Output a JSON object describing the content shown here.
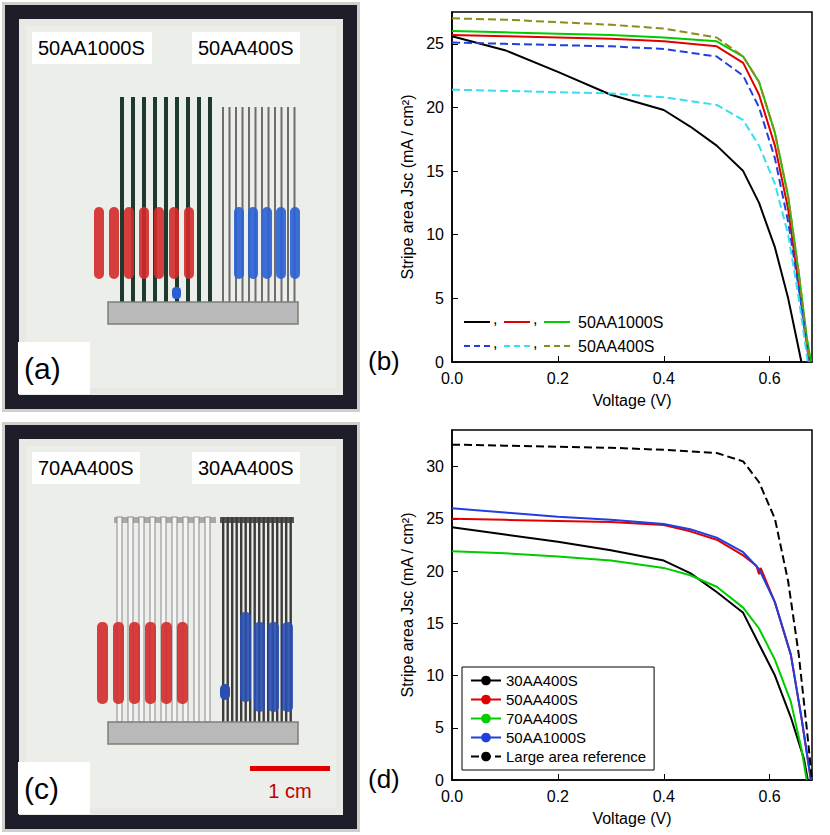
{
  "photos": [
    {
      "label": "(a)",
      "samples": [
        "50AA1000S",
        "50AA400S"
      ]
    },
    {
      "label": "(c)",
      "samples": [
        "70AA400S",
        "30AA400S"
      ],
      "scale_bar": "1 cm"
    }
  ],
  "chart_data": [
    {
      "type": "line",
      "label": "(b)",
      "x_label": "Voltage (V)",
      "y_label": "Stripe area Jsc (mA / cm²)",
      "xlim": [
        0,
        0.68
      ],
      "xticks": [
        {
          "value": 0,
          "label": "0.0"
        },
        0.2,
        0.4,
        0.6
      ],
      "ylim": [
        0,
        27.5
      ],
      "yticks": [
        0,
        5,
        10,
        15,
        20,
        25
      ],
      "grid": false,
      "legend": "bottom-left",
      "legend_separator": ",",
      "series": [
        {
          "name": "50AA1000S",
          "color": "#000000",
          "line_style": "solid",
          "x": [
            0,
            0.1,
            0.2,
            0.3,
            0.4,
            0.45,
            0.5,
            0.55,
            0.58,
            0.61,
            0.635,
            0.65,
            0.66
          ],
          "values": [
            25.6,
            24.5,
            22.8,
            21.0,
            19.8,
            18.5,
            17.0,
            15.0,
            12.5,
            9.0,
            5.0,
            2.0,
            0
          ]
        },
        {
          "name": "50AA1000S",
          "color": "#e00000",
          "line_style": "solid",
          "x": [
            0,
            0.1,
            0.2,
            0.3,
            0.4,
            0.5,
            0.55,
            0.58,
            0.61,
            0.635,
            0.655,
            0.668,
            0.675
          ],
          "values": [
            25.7,
            25.6,
            25.5,
            25.4,
            25.2,
            24.8,
            23.5,
            21.0,
            17.0,
            12.0,
            6.0,
            2.0,
            0
          ]
        },
        {
          "name": "50AA1000S",
          "color": "#00cc00",
          "line_style": "solid",
          "x": [
            0,
            0.1,
            0.2,
            0.3,
            0.4,
            0.5,
            0.55,
            0.58,
            0.61,
            0.635,
            0.655,
            0.67,
            0.678
          ],
          "values": [
            26.0,
            25.9,
            25.8,
            25.7,
            25.5,
            25.2,
            24.0,
            22.0,
            18.0,
            13.0,
            7.0,
            2.0,
            0
          ]
        },
        {
          "name": "50AA400S",
          "color": "#1f3fe0",
          "line_style": "dashed",
          "x": [
            0,
            0.1,
            0.2,
            0.3,
            0.4,
            0.5,
            0.55,
            0.58,
            0.61,
            0.635,
            0.658,
            0.675
          ],
          "values": [
            25.1,
            25.0,
            24.9,
            24.8,
            24.6,
            24.0,
            22.5,
            20.0,
            16.0,
            11.0,
            5.0,
            0
          ]
        },
        {
          "name": "50AA400S",
          "color": "#33e0f0",
          "line_style": "dashed",
          "x": [
            0,
            0.1,
            0.2,
            0.3,
            0.4,
            0.5,
            0.55,
            0.58,
            0.61,
            0.635,
            0.655,
            0.672
          ],
          "values": [
            21.4,
            21.3,
            21.2,
            21.1,
            20.8,
            20.2,
            19.0,
            17.0,
            14.0,
            10.0,
            5.0,
            0
          ]
        },
        {
          "name": "50AA400S",
          "color": "#8c8c1a",
          "line_style": "dashed",
          "x": [
            0,
            0.1,
            0.2,
            0.3,
            0.4,
            0.5,
            0.55,
            0.58,
            0.61,
            0.635,
            0.655,
            0.675
          ],
          "values": [
            27.0,
            26.9,
            26.7,
            26.5,
            26.2,
            25.5,
            24.0,
            22.0,
            18.0,
            13.0,
            7.0,
            0
          ]
        }
      ]
    },
    {
      "type": "line",
      "label": "(d)",
      "x_label": "Voltage (V)",
      "y_label": "Stripe area Jsc (mA / cm²)",
      "xlim": [
        0,
        0.68
      ],
      "xticks": [
        {
          "value": 0,
          "label": "0.0"
        },
        0.2,
        0.4,
        0.6
      ],
      "ylim": [
        0,
        33.5
      ],
      "yticks": [
        0,
        5,
        10,
        15,
        20,
        25,
        30
      ],
      "grid": false,
      "legend": "bottom-left",
      "series": [
        {
          "name": "30AA400S",
          "color": "#000000",
          "line_style": "solid",
          "x": [
            0,
            0.1,
            0.2,
            0.3,
            0.4,
            0.45,
            0.5,
            0.55,
            0.58,
            0.61,
            0.64,
            0.665,
            0.672
          ],
          "values": [
            24.2,
            23.5,
            22.8,
            22.0,
            21.0,
            19.8,
            18.0,
            16.0,
            13.0,
            10.0,
            6.0,
            2.0,
            0
          ]
        },
        {
          "name": "50AA400S",
          "color": "#e00000",
          "line_style": "solid",
          "x": [
            0,
            0.1,
            0.2,
            0.3,
            0.4,
            0.45,
            0.5,
            0.55,
            0.575,
            0.58,
            0.583,
            0.61,
            0.64,
            0.66,
            0.678
          ],
          "values": [
            25.0,
            24.9,
            24.8,
            24.7,
            24.4,
            23.8,
            23.0,
            21.5,
            20.5,
            19.7,
            20.3,
            17.0,
            12.0,
            6.0,
            0
          ]
        },
        {
          "name": "70AA400S",
          "color": "#00cc00",
          "line_style": "solid",
          "x": [
            0,
            0.1,
            0.2,
            0.3,
            0.4,
            0.45,
            0.5,
            0.55,
            0.58,
            0.61,
            0.64,
            0.66,
            0.67
          ],
          "values": [
            21.9,
            21.7,
            21.4,
            21.0,
            20.3,
            19.6,
            18.5,
            16.5,
            14.5,
            11.5,
            7.5,
            3.0,
            0
          ]
        },
        {
          "name": "50AA1000S",
          "color": "#1f3fe0",
          "line_style": "solid",
          "x": [
            0,
            0.1,
            0.2,
            0.3,
            0.4,
            0.45,
            0.5,
            0.55,
            0.58,
            0.61,
            0.64,
            0.66,
            0.678
          ],
          "values": [
            26.0,
            25.6,
            25.2,
            24.9,
            24.5,
            24.0,
            23.2,
            21.8,
            20.2,
            17.0,
            12.0,
            6.0,
            0
          ]
        },
        {
          "name": "Large area reference",
          "color": "#000000",
          "line_style": "dashed",
          "x": [
            0,
            0.1,
            0.2,
            0.3,
            0.4,
            0.5,
            0.55,
            0.58,
            0.61,
            0.635,
            0.655,
            0.67,
            0.68
          ],
          "values": [
            32.1,
            32.0,
            31.9,
            31.8,
            31.6,
            31.3,
            30.5,
            28.5,
            25.0,
            19.0,
            12.0,
            5.0,
            0
          ]
        }
      ]
    }
  ]
}
